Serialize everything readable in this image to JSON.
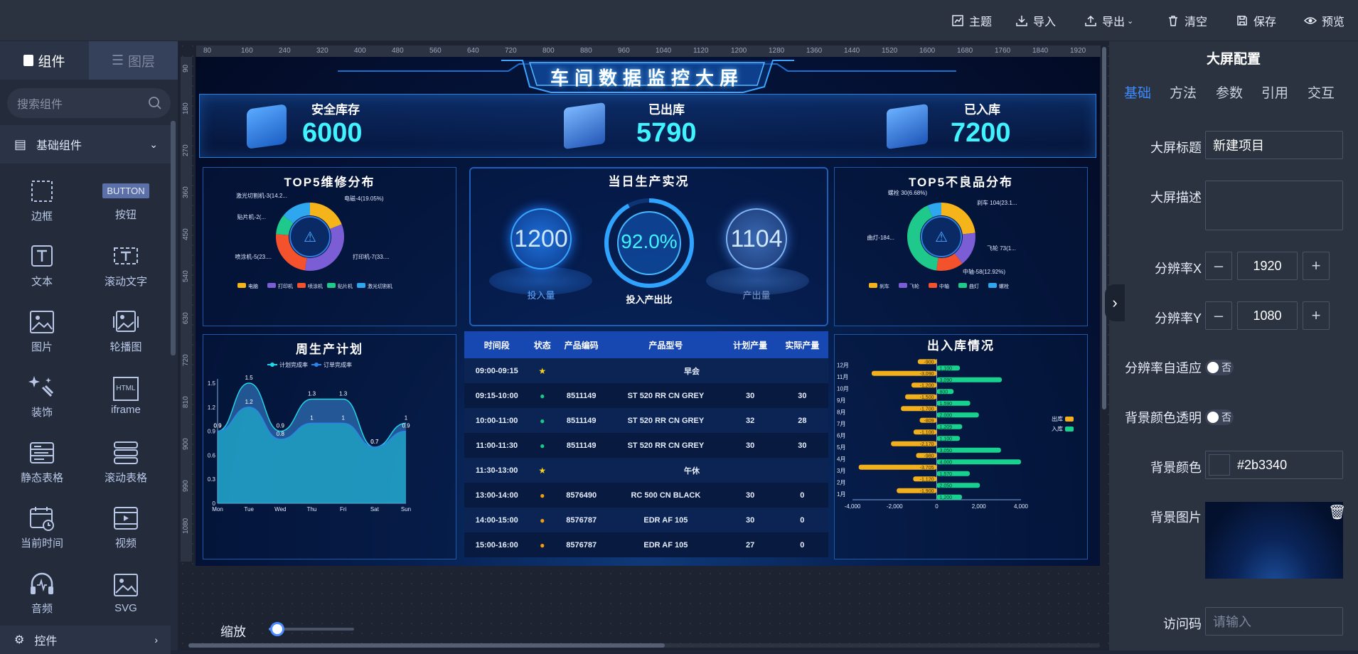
{
  "toolbar": {
    "theme": "主题",
    "import": "导入",
    "export": "导出",
    "clear": "清空",
    "save": "保存",
    "preview": "预览"
  },
  "left_panel": {
    "tab_components": "组件",
    "tab_layers": "图层",
    "search_placeholder": "搜索组件",
    "category": "基础组件",
    "category2": "控件",
    "components": [
      {
        "label": "边框",
        "icon": "border-icon"
      },
      {
        "label": "按钮",
        "icon": "button-icon"
      },
      {
        "label": "文本",
        "icon": "text-icon"
      },
      {
        "label": "滚动文字",
        "icon": "scroll-text-icon"
      },
      {
        "label": "图片",
        "icon": "image-icon"
      },
      {
        "label": "轮播图",
        "icon": "carousel-icon"
      },
      {
        "label": "装饰",
        "icon": "decoration-icon"
      },
      {
        "label": "iframe",
        "icon": "iframe-icon"
      },
      {
        "label": "静态表格",
        "icon": "static-table-icon"
      },
      {
        "label": "滚动表格",
        "icon": "scroll-table-icon"
      },
      {
        "label": "当前时间",
        "icon": "calendar-icon"
      },
      {
        "label": "视频",
        "icon": "video-icon"
      },
      {
        "label": "音频",
        "icon": "audio-icon"
      },
      {
        "label": "SVG",
        "icon": "svg-icon"
      }
    ],
    "button_badge": "BUTTON",
    "iframe_badge": "HTML"
  },
  "ruler": {
    "h_ticks": [
      "80",
      "160",
      "240",
      "320",
      "400",
      "480",
      "560",
      "640",
      "720",
      "800",
      "880",
      "960",
      "1040",
      "1120",
      "1200",
      "1280",
      "1360",
      "1440",
      "1520",
      "1600",
      "1680",
      "1760",
      "1840",
      "1920"
    ],
    "v_ticks": [
      "90",
      "180",
      "270",
      "360",
      "450",
      "540",
      "630",
      "720",
      "810",
      "900",
      "990",
      "1080"
    ]
  },
  "dashboard": {
    "title": "车间数据监控大屏",
    "stats": [
      {
        "label": "安全库存",
        "value": "6000"
      },
      {
        "label": "已出库",
        "value": "5790"
      },
      {
        "label": "已入库",
        "value": "7200"
      }
    ],
    "repair_title": "TOP5维修分布",
    "production_title": "当日生产实况",
    "input_value": "1200",
    "input_label": "投入量",
    "ratio_value": "92.0%",
    "ratio_label": "投入产出比",
    "output_value": "1104",
    "output_label": "产出量",
    "defect_title": "TOP5不良品分布",
    "weekly_title": "周生产计划",
    "inout_title": "出入库情况",
    "repair_labels": [
      "激光切割机-3(14.2...",
      "电磁-4(19.05%)",
      "贴片机-2(...",
      "喷涂机-5(23....",
      "打印机-7(33...."
    ],
    "defect_labels": [
      "螺栓 30(6.68%)",
      "刹车 104(23.1...",
      "飞轮 73(1...",
      "中轴-58(12.92%)",
      "曲灯-184..."
    ]
  },
  "repair_chart": {
    "type": "pie",
    "legend": [
      "电脑",
      "打印机",
      "喷涂机",
      "贴片机",
      "激光切割机"
    ],
    "values": [
      4,
      7,
      5,
      2,
      3
    ],
    "colors": [
      "#f5b51a",
      "#7b5dd6",
      "#f4522d",
      "#1ec98b",
      "#2fa7ee"
    ]
  },
  "defect_chart": {
    "type": "pie",
    "legend": [
      "刹车",
      "飞轮",
      "中轴",
      "曲灯",
      "螺栓"
    ],
    "values": [
      104,
      73,
      58,
      184,
      30
    ],
    "colors": [
      "#f5b51a",
      "#7b5dd6",
      "#f4522d",
      "#1ec98b",
      "#2fa7ee"
    ]
  },
  "weekly_chart": {
    "type": "area",
    "legend": [
      "计划完成率",
      "订单完成率"
    ],
    "categories": [
      "Mon",
      "Tue",
      "Wed",
      "Thu",
      "Fri",
      "Sat",
      "Sun"
    ],
    "series": [
      {
        "name": "计划完成率",
        "values": [
          0.9,
          1.5,
          0.9,
          1.3,
          1.3,
          0.7,
          1
        ]
      },
      {
        "name": "订单完成率",
        "values": [
          0.9,
          1.2,
          0.8,
          1,
          1,
          0.7,
          0.9
        ]
      }
    ],
    "y_ticks": [
      "0",
      "0.3",
      "0.6",
      "0.9",
      "1.2",
      "1.5"
    ],
    "ylim": [
      0,
      1.5
    ]
  },
  "inout_chart": {
    "type": "bar",
    "legend": [
      "出库",
      "入库"
    ],
    "categories": [
      "1月",
      "2月",
      "3月",
      "4月",
      "5月",
      "6月",
      "7月",
      "8月",
      "9月",
      "10月",
      "11月",
      "12月"
    ],
    "series": [
      {
        "name": "出库",
        "values": [
          -1900,
          -1120,
          -3705,
          -980,
          -2170,
          -1100,
          -809,
          -1700,
          -1500,
          -1200,
          -3090,
          -900
        ]
      },
      {
        "name": "入库",
        "values": [
          1200,
          2050,
          1570,
          4000,
          3050,
          1100,
          1209,
          2000,
          1590,
          800,
          3090,
          1100
        ]
      }
    ],
    "x_ticks": [
      "-4,000",
      "-2,000",
      "0",
      "2,000",
      "4,000"
    ],
    "xlim": [
      -4000,
      4000
    ]
  },
  "production_table": {
    "headers": [
      "时间段",
      "状态",
      "产品编码",
      "产品型号",
      "计划产量",
      "实际产量"
    ],
    "rows": [
      {
        "time": "09:00-09:15",
        "status": "star",
        "merged": "早会"
      },
      {
        "time": "09:15-10:00",
        "status": "ok",
        "code": "8511149",
        "model": "ST 520 RR CN GREY",
        "plan": "30",
        "actual": "30"
      },
      {
        "time": "10:00-11:00",
        "status": "ok",
        "code": "8511149",
        "model": "ST 520 RR CN GREY",
        "plan": "32",
        "actual": "28"
      },
      {
        "time": "11:00-11:30",
        "status": "ok",
        "code": "8511149",
        "model": "ST 520 RR CN GREY",
        "plan": "30",
        "actual": "30"
      },
      {
        "time": "11:30-13:00",
        "status": "star",
        "merged": "午休"
      },
      {
        "time": "13:00-14:00",
        "status": "warn",
        "code": "8576490",
        "model": "RC 500 CN BLACK",
        "plan": "30",
        "actual": "0"
      },
      {
        "time": "14:00-15:00",
        "status": "warn",
        "code": "8576787",
        "model": "EDR AF 105",
        "plan": "30",
        "actual": "0"
      },
      {
        "time": "15:00-16:00",
        "status": "warn",
        "code": "8576787",
        "model": "EDR AF 105",
        "plan": "27",
        "actual": "0"
      }
    ]
  },
  "right_panel": {
    "title": "大屏配置",
    "tabs": [
      "基础",
      "方法",
      "参数",
      "引用",
      "交互"
    ],
    "screen_title_label": "大屏标题",
    "screen_title_value": "新建项目",
    "screen_desc_label": "大屏描述",
    "resx_label": "分辨率X",
    "resx_value": "1920",
    "resy_label": "分辨率Y",
    "resy_value": "1080",
    "adaptive_label": "分辨率自适应",
    "adaptive_value": "否",
    "transparent_label": "背景颜色透明",
    "transparent_value": "否",
    "bgcolor_label": "背景颜色",
    "bgcolor_value": "#2b3340",
    "bgimage_label": "背景图片",
    "access_label": "访问码",
    "access_placeholder": "请输入"
  },
  "zoom": {
    "label": "缩放",
    "level": 0.1
  }
}
